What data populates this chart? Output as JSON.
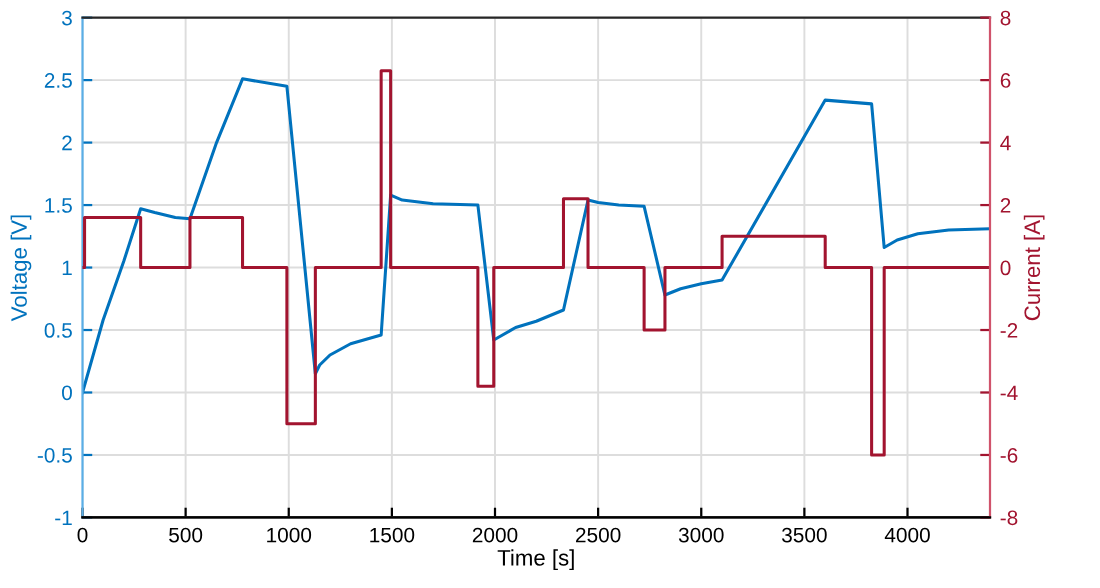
{
  "chart_data": {
    "type": "line",
    "xlabel": "Time [s]",
    "ylabel": "Voltage [V]",
    "y2label": "Current [A]",
    "xlim": [
      0,
      4400
    ],
    "xticks": [
      0,
      500,
      1000,
      1500,
      2000,
      2500,
      3000,
      3500,
      4000
    ],
    "ylim": [
      -1,
      3
    ],
    "yticks": [
      -1,
      -0.5,
      0,
      0.5,
      1,
      1.5,
      2,
      2.5,
      3
    ],
    "y2lim": [
      -8,
      8
    ],
    "y2ticks": [
      -8,
      -6,
      -4,
      -2,
      0,
      2,
      4,
      6,
      8
    ],
    "grid": true,
    "series": [
      {
        "color": "#0072bd",
        "x": [
          0,
          100,
          200,
          282,
          350,
          450,
          521,
          650,
          776,
          991,
          1129,
          1150,
          1200,
          1300,
          1448,
          1494,
          1550,
          1600,
          1700,
          1917,
          1994,
          2100,
          2200,
          2332,
          2451,
          2500,
          2600,
          2723,
          2824,
          2900,
          3000,
          3101,
          3601,
          3826,
          3887,
          3950,
          4050,
          4200,
          4400
        ],
        "values": [
          0,
          0.58,
          1.05,
          1.47,
          1.44,
          1.4,
          1.39,
          2.0,
          2.51,
          2.45,
          0.15,
          0.22,
          0.3,
          0.39,
          0.46,
          1.58,
          1.54,
          1.53,
          1.51,
          1.5,
          0.42,
          0.52,
          0.57,
          0.66,
          1.54,
          1.52,
          1.5,
          1.49,
          0.78,
          0.83,
          0.87,
          0.9,
          2.34,
          2.31,
          1.16,
          1.22,
          1.27,
          1.3,
          1.31
        ]
      },
      {
        "type": "step",
        "axis": "y2",
        "color": "#a2142f",
        "x": [
          0,
          10,
          282,
          521,
          776,
          991,
          1129,
          1448,
          1494,
          1917,
          1994,
          2332,
          2451,
          2723,
          2824,
          3101,
          3601,
          3826,
          3887,
          4400
        ],
        "values": [
          0,
          1.6,
          0,
          1.6,
          0,
          -5,
          0,
          6.3,
          0,
          -3.8,
          0,
          2.2,
          0,
          -2,
          0,
          1,
          0,
          -6,
          0,
          0
        ]
      }
    ]
  }
}
